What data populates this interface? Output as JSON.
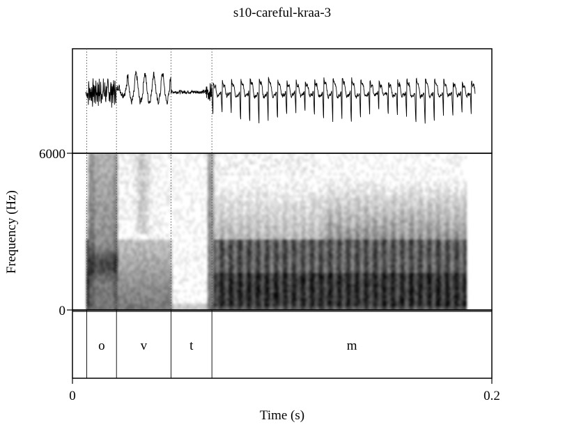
{
  "chart_data": {
    "type": "spectrogram",
    "title": "s10-careful-kraa-3",
    "xlabel": "Time (s)",
    "ylabel": "Frequency (Hz)",
    "xlim": [
      0,
      0.2
    ],
    "ylim": [
      0,
      6000
    ],
    "x_ticks": [
      {
        "value": 0,
        "label": "0"
      },
      {
        "value": 0.2,
        "label": "0.2"
      }
    ],
    "y_ticks": [
      {
        "value": 0,
        "label": "0"
      },
      {
        "value": 6000,
        "label": "6000"
      }
    ],
    "segments": [
      {
        "label": "o",
        "start": 0.0068,
        "end": 0.021
      },
      {
        "label": "v",
        "start": 0.021,
        "end": 0.047
      },
      {
        "label": "t",
        "start": 0.047,
        "end": 0.0665
      },
      {
        "label": "m",
        "start": 0.0665,
        "end": 0.2
      }
    ],
    "spectrogram_end": 0.188,
    "waveform_end": 0.192,
    "dark_band_hz": [
      200,
      1500
    ],
    "secondary_band_hz": [
      1500,
      2700
    ],
    "grid": false,
    "colors": {
      "ink": "#000000",
      "spectrogram": "#000000",
      "background": "#ffffff"
    }
  }
}
